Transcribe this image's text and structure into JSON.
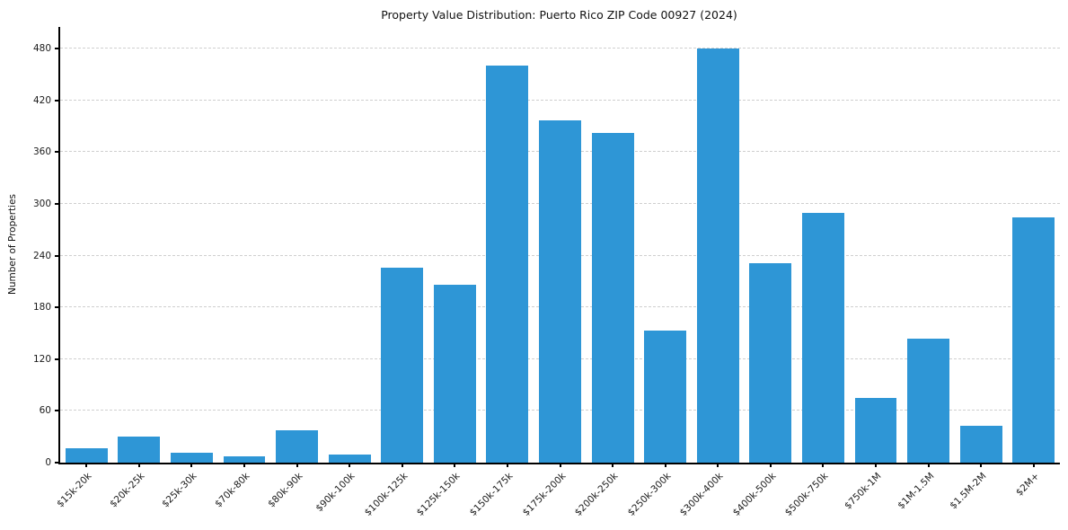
{
  "title": "Property Value Distribution: Puerto Rico ZIP Code 00927 (2024)",
  "chart_data": {
    "type": "bar",
    "title": "Property Value Distribution: Puerto Rico ZIP Code 00927 (2024)",
    "xlabel": "",
    "ylabel": "Number of Properties",
    "categories": [
      "$15k-20k",
      "$20k-25k",
      "$25k-30k",
      "$70k-80k",
      "$80k-90k",
      "$90k-100k",
      "$100k-125k",
      "$125k-150k",
      "$150k-175k",
      "$175k-200k",
      "$200k-250k",
      "$250k-300k",
      "$300k-400k",
      "$400k-500k",
      "$500k-750k",
      "$750k-1M",
      "$1M-1.5M",
      "$1.5M-2M",
      "$2M+"
    ],
    "values": [
      17,
      30,
      11,
      7,
      37,
      9,
      226,
      206,
      460,
      397,
      382,
      153,
      480,
      231,
      290,
      75,
      144,
      43,
      284
    ],
    "yticks": [
      0,
      60,
      120,
      180,
      240,
      300,
      360,
      420,
      480
    ],
    "ylim": [
      0,
      505
    ],
    "grid": "horizontal-dashed",
    "legend": "none",
    "bar_color": "#2e96d6",
    "grid_color": "#cfcfcf",
    "axis_color": "#000000",
    "text_color": "#1a1a1a"
  }
}
